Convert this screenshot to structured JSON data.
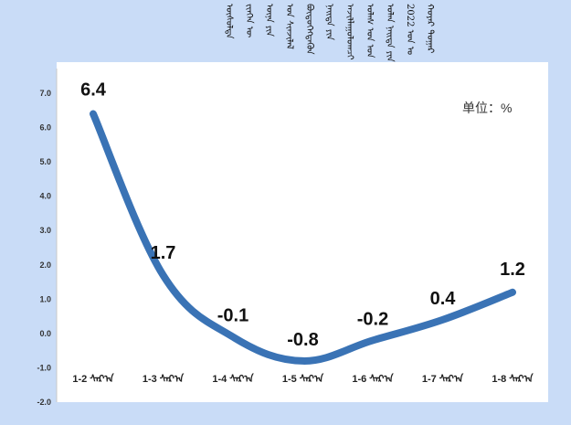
{
  "title_lines": [
    "ᠬᠣᠶᠠᠷ ᠳᠤᠭᠠᠷ",
    "2022 ᠣᠨ ᠤ",
    "ᠣᠯᠠᠨ ᠨᠡᠢᠲᠡ ᠶᠢᠨ",
    "ᠤᠯᠠᠰ ᠤᠨ ᠡᠳ",
    "ᠠᠵᠢᠯᠯᠠᠭᠤᠯᠤᠭᠴᠢ",
    "ᠨᠡᠢᠲᠡ ᠶᠢᠨ",
    "ᠪᠦᠲᠦᠭᠡᠭᠳᠡᠬᠦᠨ",
    "ᠤᠨ ᠰᠢᠨᠵᠢᠯᠡᠯ",
    "ᠦᠨᠡ ᠶᠢᠨ",
    "ᠵᠢᠨᠬᠡᠨ ᠦ",
    "ᠥᠰᠦᠯᠲᠡ"
  ],
  "unit_label": "单位：%",
  "chart_data": {
    "type": "line",
    "categories": [
      "1-2 ᠰᠠᠷ᠎ᠠ",
      "1-3 ᠰᠠᠷ᠎ᠠ",
      "1-4 ᠰᠠᠷ᠎ᠠ",
      "1-5 ᠰᠠᠷ᠎ᠠ",
      "1-6 ᠰᠠᠷ᠎ᠠ",
      "1-7 ᠰᠠᠷ᠎ᠠ",
      "1-8 ᠰᠠᠷ᠎ᠠ"
    ],
    "series": [
      {
        "values": [
          6.4,
          1.7,
          -0.1,
          -0.8,
          -0.2,
          0.4,
          1.2
        ]
      }
    ],
    "data_labels": [
      "6.4",
      "1.7",
      "-0.1",
      "-0.8",
      "-0.2",
      "0.4",
      "1.2"
    ],
    "y_ticks": [
      "7.0",
      "6.0",
      "5.0",
      "4.0",
      "3.0",
      "2.0",
      "1.0",
      "0.0",
      "-1.0",
      "-2.0"
    ],
    "ylim": [
      -2.0,
      7.0
    ],
    "grid": false,
    "line_color": "#3a73b5",
    "xlabel": "",
    "ylabel": ""
  }
}
